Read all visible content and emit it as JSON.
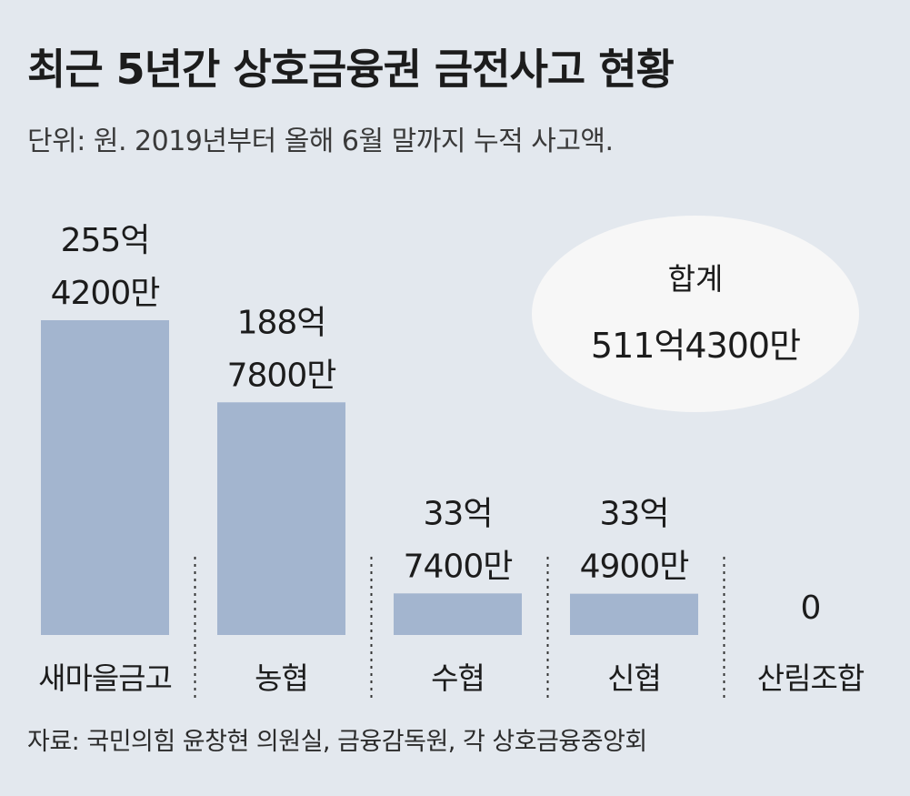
{
  "header": {
    "title": "최근 5년간 상호금융권 금전사고 현황",
    "subtitle": "단위: 원. 2019년부터 올해 6월 말까지 누적 사고액."
  },
  "total": {
    "label": "합계",
    "value": "511억4300만"
  },
  "source": "자료: 국민의힘 윤창현 의원실, 금융감독원, 각 상호금융중앙회",
  "chart_data": {
    "type": "bar",
    "categories": [
      "새마을금고",
      "농협",
      "수협",
      "신협",
      "산림조합"
    ],
    "values": [
      25542000000,
      18878000000,
      3374000000,
      3349000000,
      0
    ],
    "value_labels": [
      [
        "255억",
        "4200만"
      ],
      [
        "188억",
        "7800만"
      ],
      [
        "33억",
        "7400만"
      ],
      [
        "33억",
        "4900만"
      ],
      [
        "0"
      ]
    ],
    "ylim": [
      0,
      25542000000
    ],
    "grid": false,
    "bar_color": "#a3b5cf",
    "separator_color": "#333333"
  }
}
